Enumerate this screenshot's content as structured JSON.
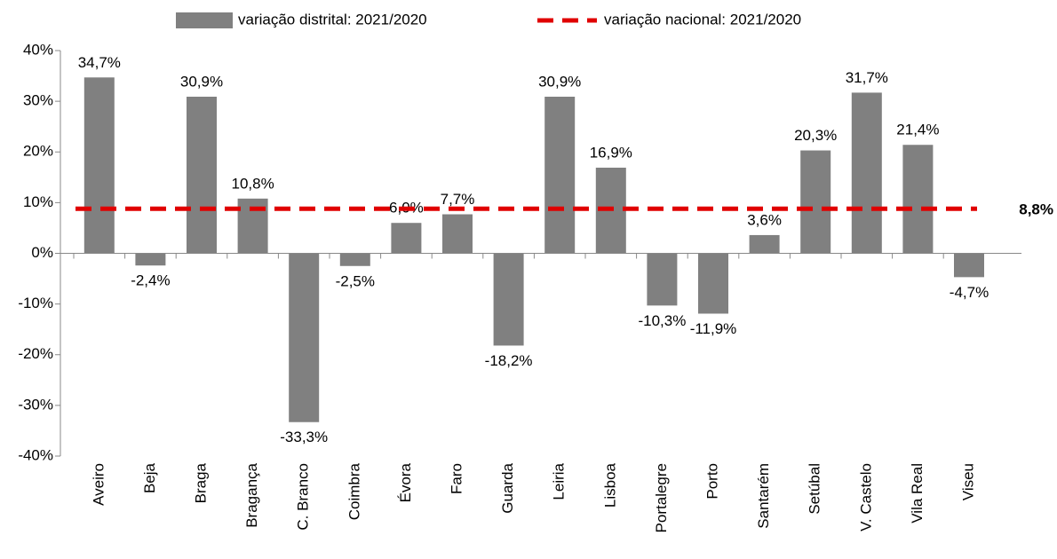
{
  "chart_data": {
    "type": "bar",
    "categories": [
      "Aveiro",
      "Beja",
      "Braga",
      "Bragança",
      "C. Branco",
      "Coimbra",
      "Évora",
      "Faro",
      "Guarda",
      "Leiria",
      "Lisboa",
      "Portalegre",
      "Porto",
      "Santarém",
      "Setúbal",
      "V. Castelo",
      "Vila Real",
      "Viseu"
    ],
    "series": [
      {
        "name": "variação distrital: 2021/2020",
        "color": "#808080",
        "values": [
          34.7,
          -2.4,
          30.9,
          10.8,
          -33.3,
          -2.5,
          6.0,
          7.7,
          -18.2,
          30.9,
          16.9,
          -10.3,
          -11.9,
          3.6,
          20.3,
          31.7,
          21.4,
          -4.7
        ],
        "value_labels": [
          "34,7%",
          "-2,4%",
          "30,9%",
          "10,8%",
          "-33,3%",
          "-2,5%",
          "6,0%",
          "7,7%",
          "-18,2%",
          "30,9%",
          "16,9%",
          "-10,3%",
          "-11,9%",
          "3,6%",
          "20,3%",
          "31,7%",
          "21,4%",
          "-4,7%"
        ]
      }
    ],
    "reference_line": {
      "name": "variação nacional: 2021/2020",
      "value": 8.8,
      "label": "8,8%",
      "color": "#e00000"
    },
    "ylim": [
      -40,
      40
    ],
    "yticks": [
      {
        "value": -40,
        "label": "-40%"
      },
      {
        "value": -30,
        "label": "-30%"
      },
      {
        "value": -20,
        "label": "-20%"
      },
      {
        "value": -10,
        "label": "-10%"
      },
      {
        "value": 0,
        "label": "0%"
      },
      {
        "value": 10,
        "label": "10%"
      },
      {
        "value": 20,
        "label": "20%"
      },
      {
        "value": 30,
        "label": "30%"
      },
      {
        "value": 40,
        "label": "40%"
      }
    ]
  }
}
